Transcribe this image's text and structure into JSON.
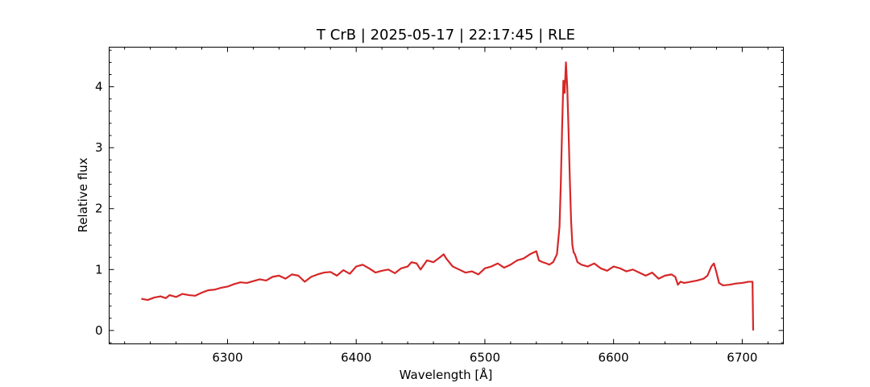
{
  "chart_data": {
    "type": "line",
    "title": "T CrB | 2025-05-17 | 22:17:45 | RLE",
    "xlabel": "Wavelength [Å]",
    "ylabel": "Relative flux",
    "xlim": [
      6208,
      6732
    ],
    "ylim": [
      -0.22,
      4.65
    ],
    "xticks": [
      6300,
      6400,
      6500,
      6600,
      6700
    ],
    "xtick_labels": [
      "6300",
      "6400",
      "6500",
      "6600",
      "6700"
    ],
    "yticks": [
      0,
      1,
      2,
      3,
      4
    ],
    "ytick_labels": [
      "0",
      "1",
      "2",
      "3",
      "4"
    ],
    "grid": false,
    "series": [
      {
        "color": "#d62728",
        "x": [
          6233,
          6238,
          6243,
          6248,
          6252,
          6255,
          6260,
          6265,
          6270,
          6275,
          6280,
          6285,
          6290,
          6295,
          6300,
          6305,
          6310,
          6315,
          6320,
          6325,
          6330,
          6335,
          6340,
          6345,
          6350,
          6355,
          6360,
          6365,
          6370,
          6375,
          6380,
          6385,
          6390,
          6395,
          6400,
          6405,
          6410,
          6415,
          6420,
          6425,
          6430,
          6435,
          6440,
          6443,
          6447,
          6450,
          6455,
          6460,
          6465,
          6468,
          6470,
          6475,
          6480,
          6485,
          6490,
          6495,
          6500,
          6505,
          6510,
          6515,
          6520,
          6525,
          6530,
          6535,
          6540,
          6542,
          6545,
          6548,
          6550,
          6553,
          6556,
          6558,
          6559,
          6560,
          6561,
          6562,
          6563,
          6564,
          6565,
          6566,
          6567,
          6568,
          6569,
          6570,
          6572,
          6575,
          6580,
          6585,
          6590,
          6595,
          6600,
          6605,
          6610,
          6615,
          6620,
          6625,
          6630,
          6635,
          6640,
          6645,
          6648,
          6650,
          6652,
          6655,
          6660,
          6665,
          6670,
          6673,
          6676,
          6678,
          6680,
          6682,
          6685,
          6690,
          6695,
          6700,
          6705,
          6708,
          6708.5
        ],
        "values": [
          0.52,
          0.5,
          0.54,
          0.56,
          0.53,
          0.58,
          0.55,
          0.6,
          0.58,
          0.57,
          0.62,
          0.66,
          0.67,
          0.7,
          0.72,
          0.76,
          0.79,
          0.78,
          0.81,
          0.84,
          0.82,
          0.88,
          0.9,
          0.85,
          0.92,
          0.9,
          0.8,
          0.88,
          0.92,
          0.95,
          0.96,
          0.9,
          0.99,
          0.93,
          1.05,
          1.08,
          1.02,
          0.95,
          0.98,
          1.0,
          0.94,
          1.02,
          1.05,
          1.12,
          1.1,
          1.0,
          1.15,
          1.12,
          1.2,
          1.25,
          1.18,
          1.05,
          1.0,
          0.95,
          0.97,
          0.92,
          1.02,
          1.05,
          1.1,
          1.03,
          1.08,
          1.15,
          1.18,
          1.25,
          1.3,
          1.15,
          1.12,
          1.1,
          1.08,
          1.12,
          1.25,
          1.7,
          2.4,
          3.3,
          4.1,
          3.9,
          4.4,
          4.0,
          3.3,
          2.5,
          1.8,
          1.4,
          1.28,
          1.25,
          1.12,
          1.08,
          1.05,
          1.1,
          1.02,
          0.98,
          1.05,
          1.02,
          0.97,
          1.0,
          0.95,
          0.9,
          0.95,
          0.85,
          0.9,
          0.92,
          0.88,
          0.75,
          0.8,
          0.78,
          0.8,
          0.82,
          0.85,
          0.9,
          1.05,
          1.1,
          0.95,
          0.78,
          0.74,
          0.75,
          0.77,
          0.78,
          0.8,
          0.8,
          0.0
        ]
      }
    ]
  }
}
